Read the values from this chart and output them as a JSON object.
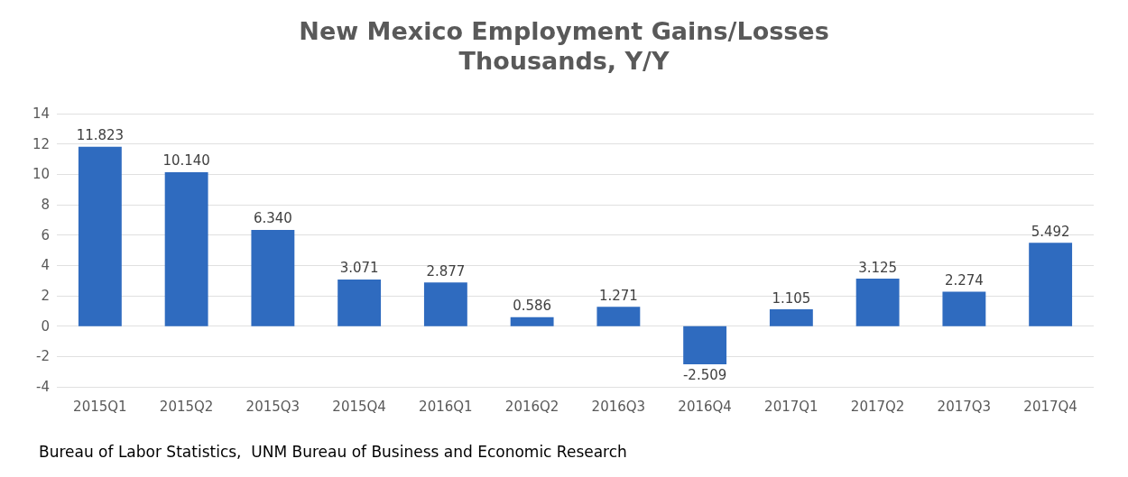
{
  "chart_data": {
    "type": "bar",
    "title": "New Mexico Employment Gains/Losses",
    "subtitle": "Thousands, Y/Y",
    "categories": [
      "2015Q1",
      "2015Q2",
      "2015Q3",
      "2015Q4",
      "2016Q1",
      "2016Q2",
      "2016Q3",
      "2016Q4",
      "2017Q1",
      "2017Q2",
      "2017Q3",
      "2017Q4"
    ],
    "values": [
      11.823,
      10.14,
      6.34,
      3.071,
      2.877,
      0.586,
      1.271,
      -2.509,
      1.105,
      3.125,
      2.274,
      5.492
    ],
    "value_labels": [
      "11.823",
      "10.140",
      "6.340",
      "3.071",
      "2.877",
      "0.586",
      "1.271",
      "-2.509",
      "1.105",
      "3.125",
      "2.274",
      "5.492"
    ],
    "color": "#2f6bbf",
    "ylim": [
      -4,
      14
    ],
    "yticks": [
      -4,
      -2,
      0,
      2,
      4,
      6,
      8,
      10,
      12,
      14
    ],
    "grid": "y",
    "annotations": [
      "Bureau of Labor Statistics,  UNM Bureau of Business and Economic Research"
    ]
  }
}
